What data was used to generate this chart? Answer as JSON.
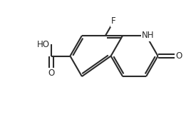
{
  "bg_color": "#ffffff",
  "line_color": "#2a2a2a",
  "lw": 1.5,
  "bl": 33,
  "atom_labels": {
    "F": "F",
    "NH": "NH",
    "O_ketone": "O",
    "COOH_O": "O",
    "COOH_HO": "HO"
  },
  "font_size": 8.5
}
